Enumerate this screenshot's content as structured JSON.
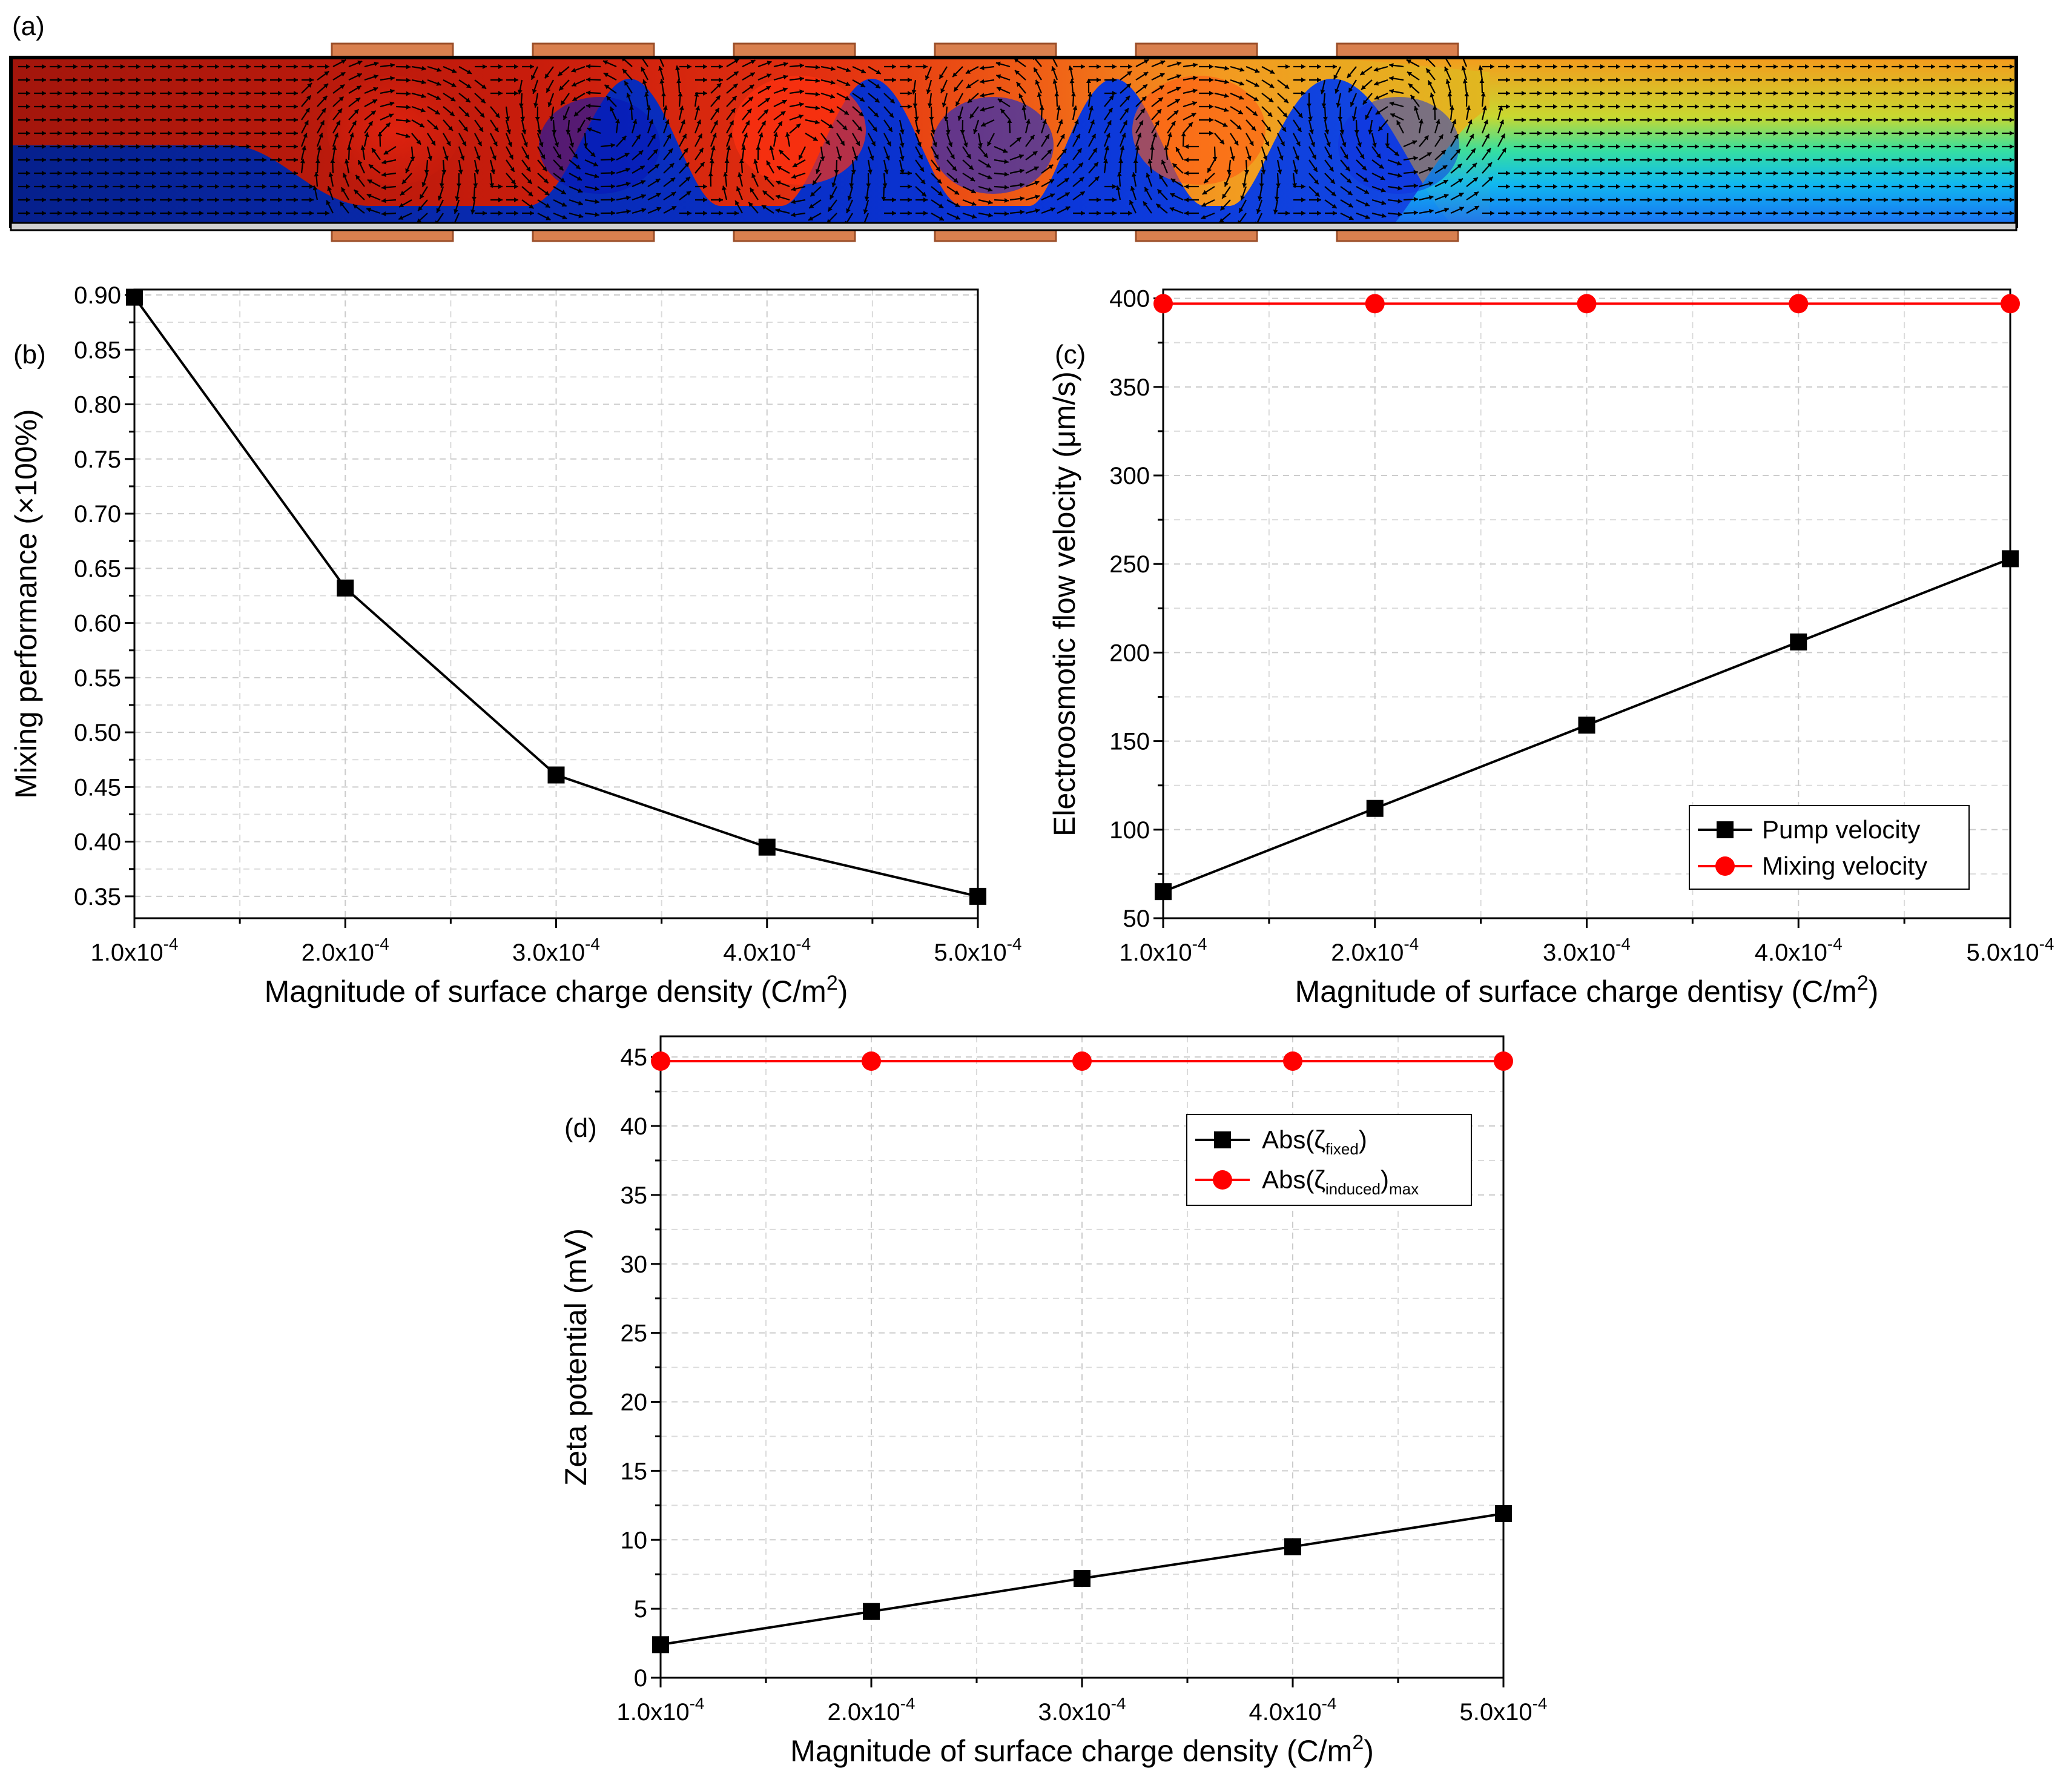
{
  "panel_a": {
    "label": "(a)",
    "description_colors": {
      "red": "#b71c0c",
      "blue": "#0a2fd6",
      "electrode": "#d9804f"
    }
  },
  "chart_data": [
    {
      "id": "b",
      "panel_label": "(b)",
      "type": "line",
      "xlabel": "Magnitude of surface charge density (C/m",
      "xlabel_sup": "2",
      "xlabel_tail": ")",
      "ylabel": "Mixing performance (×100%)",
      "xlim": [
        0.0001,
        0.0005
      ],
      "ylim": [
        0.33,
        0.905
      ],
      "xticks": [
        {
          "v": 0.0001,
          "base": "1.0x10",
          "exp": "-4"
        },
        {
          "v": 0.0002,
          "base": "2.0x10",
          "exp": "-4"
        },
        {
          "v": 0.0003,
          "base": "3.0x10",
          "exp": "-4"
        },
        {
          "v": 0.0004,
          "base": "4.0x10",
          "exp": "-4"
        },
        {
          "v": 0.0005,
          "base": "5.0x10",
          "exp": "-4"
        }
      ],
      "yticks": [
        {
          "v": 0.35,
          "t": "0.35"
        },
        {
          "v": 0.4,
          "t": "0.40"
        },
        {
          "v": 0.45,
          "t": "0.45"
        },
        {
          "v": 0.5,
          "t": "0.50"
        },
        {
          "v": 0.55,
          "t": "0.55"
        },
        {
          "v": 0.6,
          "t": "0.60"
        },
        {
          "v": 0.65,
          "t": "0.65"
        },
        {
          "v": 0.7,
          "t": "0.70"
        },
        {
          "v": 0.75,
          "t": "0.75"
        },
        {
          "v": 0.8,
          "t": "0.80"
        },
        {
          "v": 0.85,
          "t": "0.85"
        },
        {
          "v": 0.9,
          "t": "0.90"
        }
      ],
      "series": [
        {
          "name": "Mixing performance",
          "color": "#000000",
          "marker": "square",
          "x": [
            0.0001,
            0.0002,
            0.0003,
            0.0004,
            0.0005
          ],
          "values": [
            0.898,
            0.632,
            0.461,
            0.395,
            0.35
          ]
        }
      ],
      "legend": null
    },
    {
      "id": "c",
      "panel_label": "(c)",
      "type": "line",
      "xlabel": "Magnitude of surface charge dentisy (C/m",
      "xlabel_sup": "2",
      "xlabel_tail": ")",
      "ylabel": "Electroosmotic flow velocity (μm/s)",
      "xlim": [
        0.0001,
        0.0005
      ],
      "ylim": [
        50,
        405
      ],
      "xticks": [
        {
          "v": 0.0001,
          "base": "1.0x10",
          "exp": "-4"
        },
        {
          "v": 0.0002,
          "base": "2.0x10",
          "exp": "-4"
        },
        {
          "v": 0.0003,
          "base": "3.0x10",
          "exp": "-4"
        },
        {
          "v": 0.0004,
          "base": "4.0x10",
          "exp": "-4"
        },
        {
          "v": 0.0005,
          "base": "5.0x10",
          "exp": "-4"
        }
      ],
      "yticks": [
        {
          "v": 50,
          "t": "50"
        },
        {
          "v": 100,
          "t": "100"
        },
        {
          "v": 150,
          "t": "150"
        },
        {
          "v": 200,
          "t": "200"
        },
        {
          "v": 250,
          "t": "250"
        },
        {
          "v": 300,
          "t": "300"
        },
        {
          "v": 350,
          "t": "350"
        },
        {
          "v": 400,
          "t": "400"
        }
      ],
      "series": [
        {
          "name": "Pump velocity",
          "color": "#000000",
          "marker": "square",
          "x": [
            0.0001,
            0.0002,
            0.0003,
            0.0004,
            0.0005
          ],
          "values": [
            65,
            112,
            159,
            206,
            253
          ]
        },
        {
          "name": "Mixing velocity",
          "color": "#ff0000",
          "marker": "circle",
          "x": [
            0.0001,
            0.0002,
            0.0003,
            0.0004,
            0.0005
          ],
          "values": [
            397,
            397,
            397,
            397,
            397
          ]
        }
      ],
      "legend": "bottom-right"
    },
    {
      "id": "d",
      "panel_label": "(d)",
      "type": "line",
      "xlabel": "Magnitude of surface charge density (C/m",
      "xlabel_sup": "2",
      "xlabel_tail": ")",
      "ylabel": "Zeta potential (mV)",
      "xlim": [
        0.0001,
        0.0005
      ],
      "ylim": [
        0,
        46.5
      ],
      "xticks": [
        {
          "v": 0.0001,
          "base": "1.0x10",
          "exp": "-4"
        },
        {
          "v": 0.0002,
          "base": "2.0x10",
          "exp": "-4"
        },
        {
          "v": 0.0003,
          "base": "3.0x10",
          "exp": "-4"
        },
        {
          "v": 0.0004,
          "base": "4.0x10",
          "exp": "-4"
        },
        {
          "v": 0.0005,
          "base": "5.0x10",
          "exp": "-4"
        }
      ],
      "yticks": [
        {
          "v": 0,
          "t": "0"
        },
        {
          "v": 5,
          "t": "5"
        },
        {
          "v": 10,
          "t": "10"
        },
        {
          "v": 15,
          "t": "15"
        },
        {
          "v": 20,
          "t": "20"
        },
        {
          "v": 25,
          "t": "25"
        },
        {
          "v": 30,
          "t": "30"
        },
        {
          "v": 35,
          "t": "35"
        },
        {
          "v": 40,
          "t": "40"
        },
        {
          "v": 45,
          "t": "45"
        }
      ],
      "series": [
        {
          "name": "Abs(ζfixed)",
          "legend_main": "Abs(ζ",
          "legend_sub": "fixed",
          "legend_tail": ")",
          "legend_tail_sub": "",
          "color": "#000000",
          "marker": "square",
          "x": [
            0.0001,
            0.0002,
            0.0003,
            0.0004,
            0.0005
          ],
          "values": [
            2.4,
            4.8,
            7.2,
            9.5,
            11.9
          ]
        },
        {
          "name": "Abs(ζinduced)max",
          "legend_main": "Abs(ζ",
          "legend_sub": "induced",
          "legend_tail": ")",
          "legend_tail_sub": "max",
          "color": "#ff0000",
          "marker": "circle",
          "x": [
            0.0001,
            0.0002,
            0.0003,
            0.0004,
            0.0005
          ],
          "values": [
            44.7,
            44.7,
            44.7,
            44.7,
            44.7
          ]
        }
      ],
      "legend": "top-right"
    }
  ]
}
